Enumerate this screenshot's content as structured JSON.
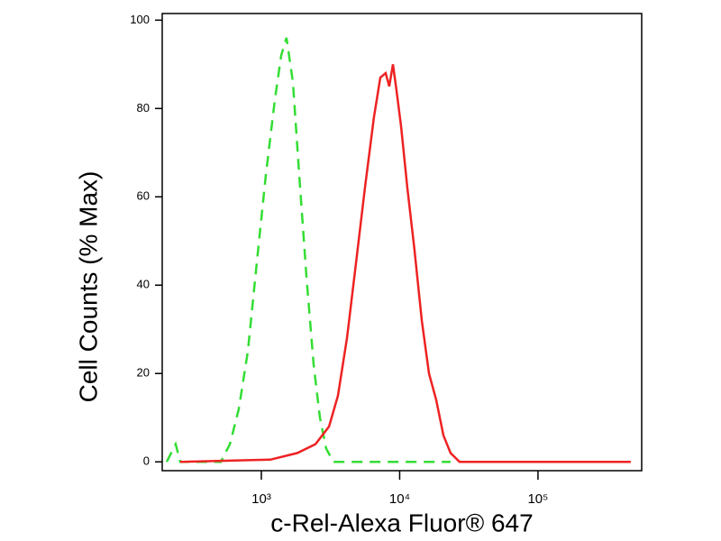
{
  "chart_data": {
    "type": "line",
    "xlabel": "c-Rel-Alexa Fluor® 647",
    "ylabel": "Cell Counts (% Max)",
    "xscale": "log",
    "xlim": [
      192,
      562000
    ],
    "ylim": [
      -2,
      101.5
    ],
    "xticks": [
      {
        "value": 1000,
        "label": "10³"
      },
      {
        "value": 10000,
        "label": "10⁴"
      },
      {
        "value": 100000,
        "label": "10⁵"
      }
    ],
    "yticks": [
      0,
      20,
      40,
      60,
      80,
      100
    ],
    "series": [
      {
        "color": "#33dd33",
        "dash": true,
        "x": [
          207,
          240,
          259,
          406,
          509,
          592,
          687,
          798,
          927,
          1078,
          1253,
          1391,
          1521,
          1690,
          1878,
          2118,
          2388,
          2651,
          2943,
          3320,
          5208,
          11020,
          23330
        ],
        "values": [
          0,
          4,
          0,
          0,
          0,
          4,
          12,
          25,
          45,
          65,
          82,
          92,
          96,
          86,
          65,
          42,
          22,
          10,
          3,
          0,
          0,
          0,
          0
        ]
      },
      {
        "color": "#ee2222",
        "dash": false,
        "x": [
          259,
          1161,
          1823,
          2460,
          3084,
          3581,
          4159,
          4830,
          5609,
          6515,
          7242,
          7920,
          8410,
          8936,
          9490,
          10230,
          11360,
          12800,
          14440,
          16290,
          18370,
          20720,
          23330,
          27100,
          49430,
          104700,
          469000
        ],
        "values": [
          0,
          0.5,
          2,
          4,
          8,
          15,
          28,
          45,
          62,
          78,
          87,
          88,
          85,
          90,
          84,
          76,
          62,
          48,
          32,
          20,
          14,
          6,
          2,
          0,
          0,
          0,
          0
        ]
      }
    ]
  }
}
